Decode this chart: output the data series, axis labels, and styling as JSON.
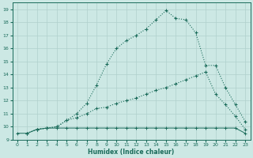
{
  "xlabel": "Humidex (Indice chaleur)",
  "xlim": [
    -0.5,
    23.5
  ],
  "ylim": [
    9,
    19.5
  ],
  "yticks": [
    9,
    10,
    11,
    12,
    13,
    14,
    15,
    16,
    17,
    18,
    19
  ],
  "xticks": [
    0,
    1,
    2,
    3,
    4,
    5,
    6,
    7,
    8,
    9,
    10,
    11,
    12,
    13,
    14,
    15,
    16,
    17,
    18,
    19,
    20,
    21,
    22,
    23
  ],
  "bg_color": "#cce8e4",
  "grid_color": "#b0d0cc",
  "line_color": "#1a6b5a",
  "curve1_x": [
    1,
    2,
    3,
    4,
    5,
    6,
    7,
    8,
    9,
    10,
    11,
    12,
    13,
    14,
    15,
    16,
    17,
    18,
    19,
    20,
    21,
    22,
    23
  ],
  "curve1_y": [
    9.5,
    9.8,
    9.9,
    10.0,
    10.5,
    11.0,
    11.8,
    13.2,
    14.8,
    16.0,
    16.6,
    17.0,
    17.5,
    18.2,
    18.9,
    18.3,
    18.2,
    17.2,
    14.7,
    14.7,
    13.0,
    11.7,
    10.4
  ],
  "curve2_x": [
    1,
    2,
    3,
    4,
    5,
    6,
    7,
    8,
    9,
    10,
    11,
    12,
    13,
    14,
    15,
    16,
    17,
    18,
    19,
    20,
    21,
    22,
    23
  ],
  "curve2_y": [
    9.5,
    9.8,
    9.9,
    10.0,
    10.5,
    10.7,
    11.0,
    11.4,
    11.5,
    11.8,
    12.0,
    12.2,
    12.5,
    12.8,
    13.0,
    13.3,
    13.6,
    13.9,
    14.2,
    12.5,
    11.7,
    10.8,
    9.8
  ],
  "curve3_x": [
    0,
    1,
    2,
    3,
    4,
    5,
    6,
    7,
    8,
    9,
    10,
    11,
    12,
    13,
    14,
    15,
    16,
    17,
    18,
    19,
    20,
    21,
    22,
    23
  ],
  "curve3_y": [
    9.5,
    9.5,
    9.8,
    9.9,
    9.9,
    9.9,
    9.9,
    9.9,
    9.9,
    9.9,
    9.9,
    9.9,
    9.9,
    9.9,
    9.9,
    9.9,
    9.9,
    9.9,
    9.9,
    9.9,
    9.9,
    9.9,
    9.9,
    9.5
  ]
}
